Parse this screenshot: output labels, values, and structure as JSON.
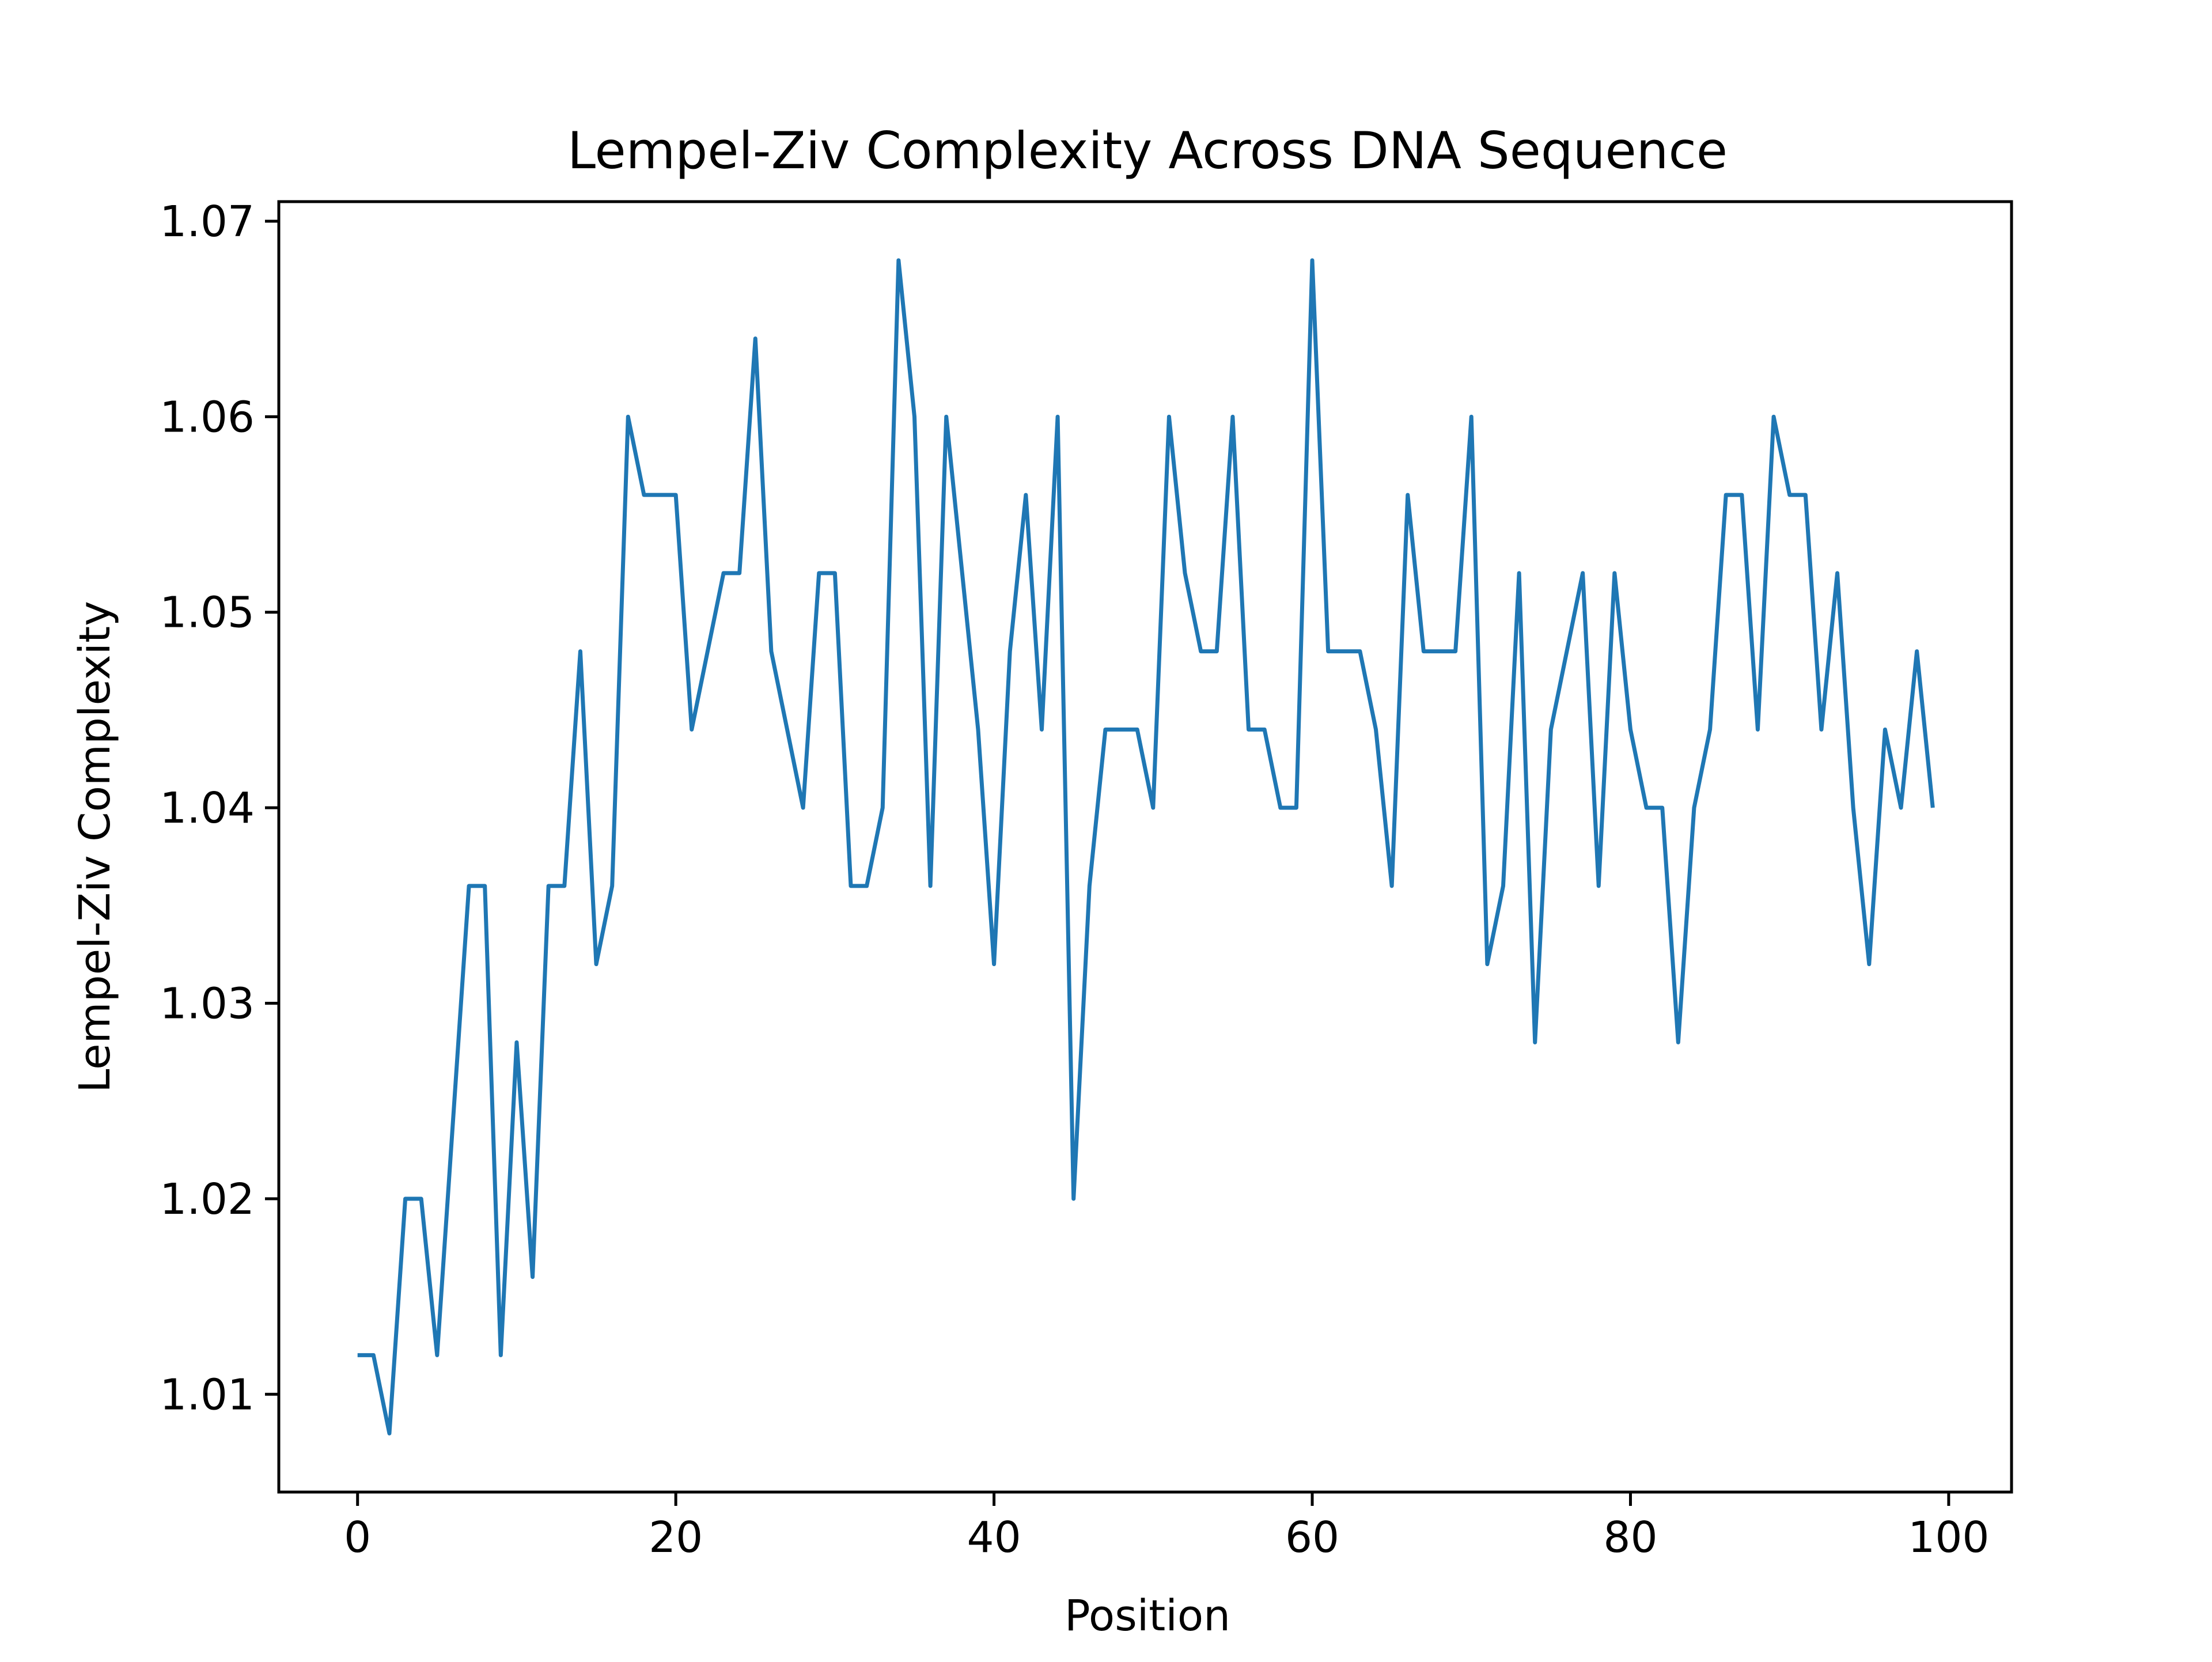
{
  "chart_data": {
    "type": "line",
    "title": "Lempel-Ziv Complexity Across DNA Sequence",
    "xlabel": "Position",
    "ylabel": "Lempel-Ziv Complexity",
    "xlim": [
      -4.95,
      103.95
    ],
    "ylim": [
      1.005,
      1.071
    ],
    "xticks": [
      0,
      20,
      40,
      60,
      80,
      100
    ],
    "xtick_labels": [
      "0",
      "20",
      "40",
      "60",
      "80",
      "100"
    ],
    "yticks": [
      1.01,
      1.02,
      1.03,
      1.04,
      1.05,
      1.06,
      1.07
    ],
    "ytick_labels": [
      "1.01",
      "1.02",
      "1.03",
      "1.04",
      "1.05",
      "1.06",
      "1.07"
    ],
    "grid": false,
    "line_color": "#1f77b4",
    "series": [
      {
        "x": [
          0,
          1,
          2,
          3,
          4,
          5,
          6,
          7,
          8,
          9,
          10,
          11,
          12,
          13,
          14,
          15,
          16,
          17,
          18,
          19,
          20,
          21,
          22,
          23,
          24,
          25,
          26,
          27,
          28,
          29,
          30,
          31,
          32,
          33,
          34,
          35,
          36,
          37,
          38,
          39,
          40,
          41,
          42,
          43,
          44,
          45,
          46,
          47,
          48,
          49,
          50,
          51,
          52,
          53,
          54,
          55,
          56,
          57,
          58,
          59,
          60,
          61,
          62,
          63,
          64,
          65,
          66,
          67,
          68,
          69,
          70,
          71,
          72,
          73,
          74,
          75,
          76,
          77,
          78,
          79,
          80,
          81,
          82,
          83,
          84,
          85,
          86,
          87,
          88,
          89,
          90,
          91,
          92,
          93,
          94,
          95,
          96,
          97,
          98,
          99
        ],
        "values": [
          1.012,
          1.012,
          1.008,
          1.02,
          1.02,
          1.012,
          1.024,
          1.036,
          1.036,
          1.012,
          1.028,
          1.016,
          1.036,
          1.036,
          1.048,
          1.032,
          1.036,
          1.06,
          1.056,
          1.056,
          1.056,
          1.044,
          1.048,
          1.052,
          1.052,
          1.064,
          1.048,
          1.044,
          1.04,
          1.052,
          1.052,
          1.036,
          1.036,
          1.04,
          1.068,
          1.06,
          1.036,
          1.06,
          1.052,
          1.044,
          1.032,
          1.048,
          1.056,
          1.044,
          1.06,
          1.02,
          1.036,
          1.044,
          1.044,
          1.044,
          1.04,
          1.06,
          1.052,
          1.048,
          1.048,
          1.06,
          1.044,
          1.044,
          1.04,
          1.04,
          1.068,
          1.048,
          1.048,
          1.048,
          1.044,
          1.036,
          1.056,
          1.048,
          1.048,
          1.048,
          1.06,
          1.032,
          1.036,
          1.052,
          1.028,
          1.044,
          1.048,
          1.052,
          1.036,
          1.052,
          1.044,
          1.04,
          1.04,
          1.028,
          1.04,
          1.044,
          1.056,
          1.056,
          1.044,
          1.06,
          1.056,
          1.056,
          1.044,
          1.052,
          1.04,
          1.032,
          1.044,
          1.04,
          1.048,
          1.04
        ]
      }
    ]
  }
}
